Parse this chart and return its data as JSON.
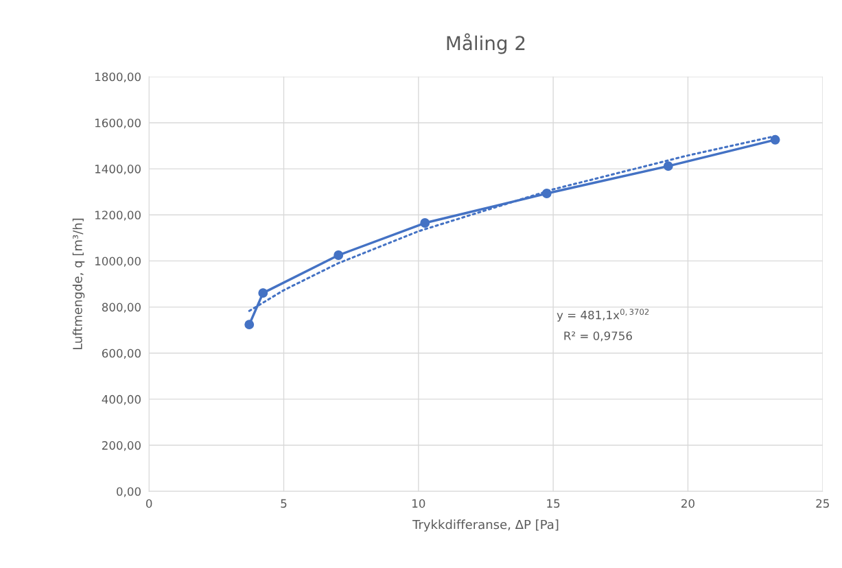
{
  "chart_data": {
    "type": "line",
    "title": "Måling 2",
    "xlabel": "Trykkdifferanse, ΔP [Pa]",
    "ylabel": "Luftmengde, q [m³/h]",
    "series": [
      {
        "color": "#4472c4",
        "marker": "circle",
        "line_style": "solid",
        "x": [
          3.72,
          4.23,
          7.03,
          10.24,
          14.76,
          19.27,
          23.24
        ],
        "values": [
          724,
          861,
          1025,
          1165,
          1293,
          1412,
          1526
        ]
      },
      {
        "color": "#4472c4",
        "marker": "none",
        "line_style": "dotted",
        "x": [
          3.72,
          5,
          7,
          10,
          15,
          20,
          23.24
        ],
        "values": [
          783,
          873,
          989,
          1129,
          1311,
          1458,
          1542
        ]
      }
    ],
    "annotations": [
      "y = 481,1x$^{0,3702}$",
      "R² = 0,9756"
    ],
    "xlim": [
      0,
      25
    ],
    "xticks": [
      0,
      5,
      10,
      15,
      20,
      25
    ],
    "ylim": [
      0,
      1800
    ],
    "yticks": [
      {
        "value": 0,
        "label": "0,00"
      },
      {
        "value": 200,
        "label": "200,00"
      },
      {
        "value": 400,
        "label": "400,00"
      },
      {
        "value": 600,
        "label": "600,00"
      },
      {
        "value": 800,
        "label": "800,00"
      },
      {
        "value": 1000,
        "label": "1000,00"
      },
      {
        "value": 1200,
        "label": "1200,00"
      },
      {
        "value": 1400,
        "label": "1400,00"
      },
      {
        "value": 1600,
        "label": "1600,00"
      },
      {
        "value": 1800,
        "label": "1800,00"
      }
    ],
    "grid": true,
    "legend": false
  }
}
